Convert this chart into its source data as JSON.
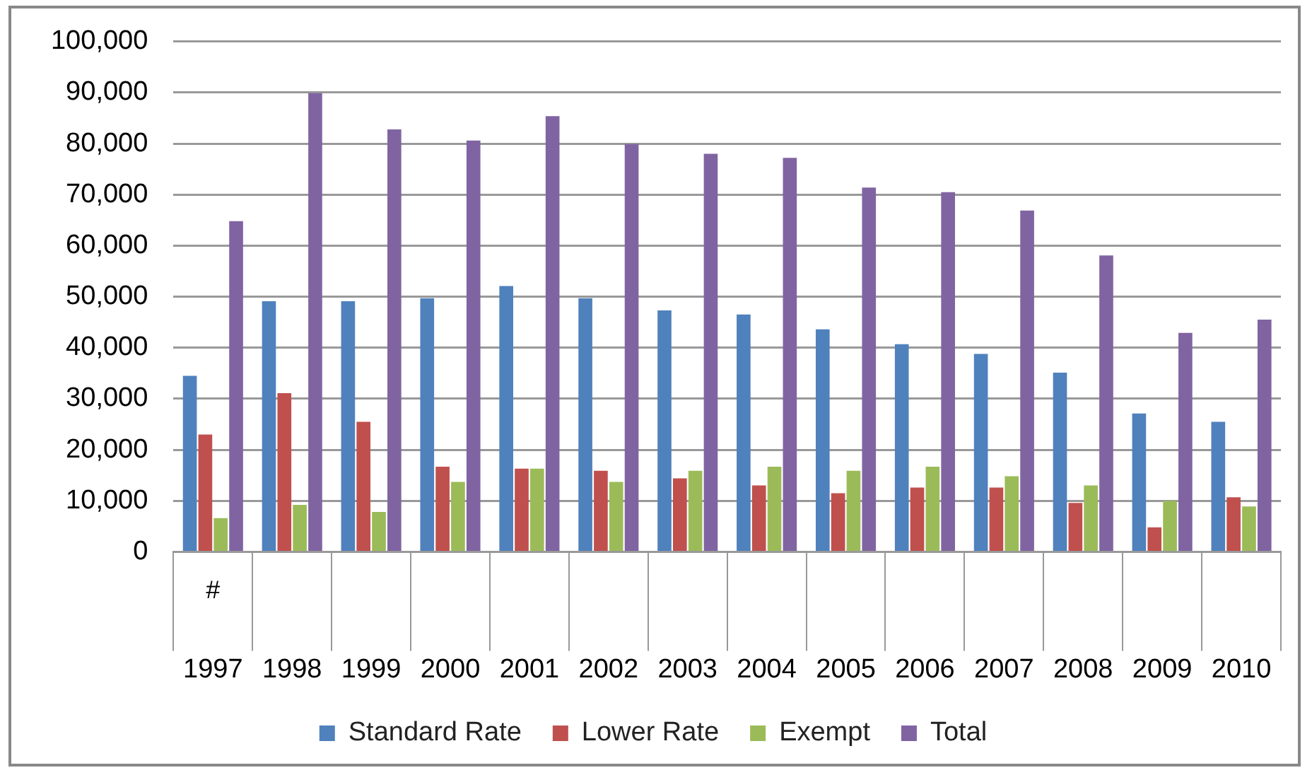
{
  "chart_data": {
    "type": "bar",
    "categories": [
      "1997",
      "1998",
      "1999",
      "2000",
      "2001",
      "2002",
      "2003",
      "2004",
      "2005",
      "2006",
      "2007",
      "2008",
      "2009",
      "2010"
    ],
    "series": [
      {
        "name": "Standard Rate",
        "color": "#4f81bd",
        "values": [
          34500,
          49100,
          49100,
          49700,
          52100,
          49700,
          47300,
          46500,
          43600,
          40700,
          38800,
          35100,
          27100,
          25500
        ]
      },
      {
        "name": "Lower Rate",
        "color": "#c0504d",
        "values": [
          23000,
          31100,
          25500,
          16700,
          16300,
          15900,
          14400,
          13000,
          11500,
          12600,
          12600,
          9600,
          4800,
          10700
        ]
      },
      {
        "name": "Exempt",
        "color": "#9bbb59",
        "values": [
          6600,
          9200,
          7800,
          13700,
          16300,
          13700,
          15900,
          16700,
          15900,
          16700,
          14800,
          13000,
          10000,
          8900
        ]
      },
      {
        "name": "Total",
        "color": "#8064a2",
        "values": [
          64800,
          89900,
          82800,
          80600,
          85400,
          79900,
          78000,
          77200,
          71400,
          70500,
          66900,
          58100,
          42900,
          45500
        ]
      }
    ],
    "annotations": [
      "#"
    ],
    "ylim": [
      0,
      100000
    ],
    "yticks": [
      0,
      {
        "value": 10000,
        "label": "10,000"
      },
      {
        "value": 20000,
        "label": "20,000"
      },
      {
        "value": 30000,
        "label": "30,000"
      },
      {
        "value": 40000,
        "label": "40,000"
      },
      {
        "value": 50000,
        "label": "50,000"
      },
      {
        "value": 60000,
        "label": "60,000"
      },
      {
        "value": 70000,
        "label": "70,000"
      },
      {
        "value": 80000,
        "label": "80,000"
      },
      {
        "value": 90000,
        "label": "90,000"
      },
      {
        "value": 100000,
        "label": "100,000"
      }
    ],
    "grid": "y",
    "legend": "bottom"
  }
}
